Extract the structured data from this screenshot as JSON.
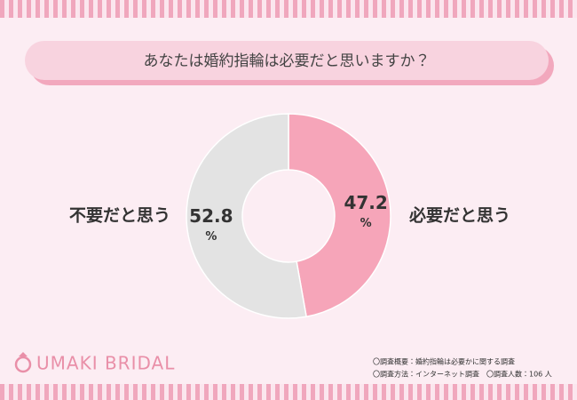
{
  "chart_data": {
    "type": "donut",
    "title": "あなたは婚約指輪は必要だと思いますか？",
    "categories": [
      "必要だと思う",
      "不要だと思う"
    ],
    "values": [
      47.2,
      52.8
    ],
    "unit": "%",
    "colors": [
      "#f6a5b9",
      "#e3e3e3"
    ],
    "brand": "UMAKI BRIDAL",
    "notes": [
      "〇調査概要：婚約指輪は必要かに関する調査",
      "〇調査方法：インターネット調査　〇調査人数：106 人"
    ]
  }
}
